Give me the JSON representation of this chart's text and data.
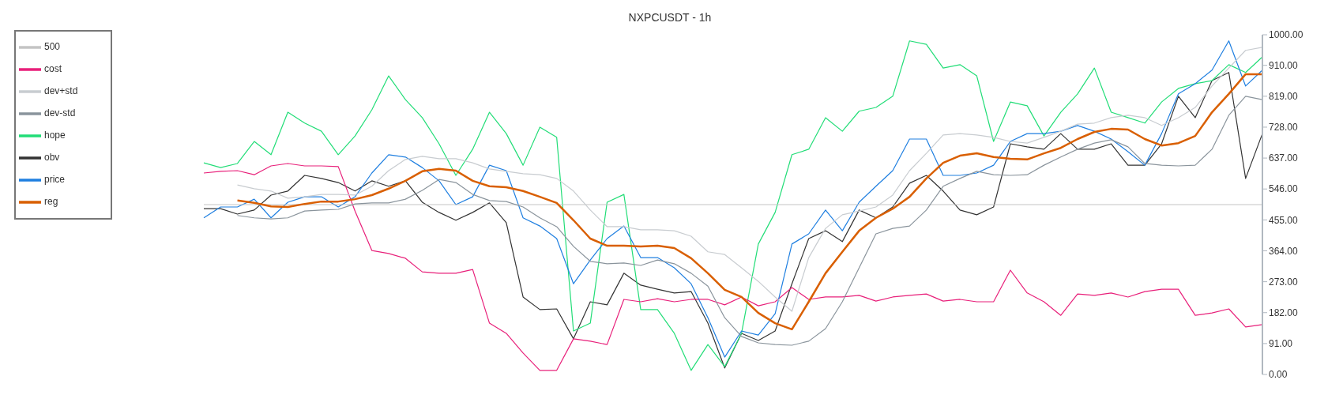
{
  "chart_data": {
    "type": "line",
    "title": "NXPCUSDT - 1h",
    "categories": [
      null,
      null,
      null,
      null,
      null,
      null,
      null,
      null,
      null,
      null,
      null,
      null,
      null,
      null,
      null,
      null,
      null,
      null,
      null,
      null,
      null,
      null,
      null,
      null,
      null,
      null,
      null,
      null,
      null,
      null,
      null,
      null,
      null,
      null,
      null,
      null,
      null,
      null,
      null,
      null,
      null,
      null,
      null,
      null,
      null,
      null,
      null,
      null,
      null,
      null,
      null,
      null,
      null,
      null,
      null,
      null,
      null,
      null,
      null,
      null,
      null,
      null,
      null,
      null
    ],
    "series": [
      {
        "name": "obv",
        "color": "#333333",
        "values": [
          488,
          488,
          472,
          484,
          528,
          540,
          586,
          577,
          565,
          540,
          570,
          554,
          570,
          507,
          477,
          454,
          477,
          505,
          447,
          228,
          191,
          193,
          105,
          214,
          205,
          298,
          263,
          251,
          240,
          244,
          151,
          19,
          121,
          100,
          128,
          267,
          400,
          423,
          391,
          484,
          461,
          493,
          563,
          586,
          540,
          484,
          470,
          493,
          679,
          670,
          663,
          709,
          663,
          663,
          679,
          616,
          616,
          679,
          819,
          756,
          865,
          889,
          577,
          709
        ]
      },
      {
        "name": "hope",
        "color": "#22dd77",
        "values": [
          623,
          609,
          621,
          686,
          647,
          772,
          740,
          716,
          647,
          702,
          779,
          879,
          809,
          756,
          679,
          586,
          663,
          772,
          709,
          616,
          728,
          698,
          128,
          151,
          507,
          530,
          191,
          191,
          121,
          12,
          88,
          23,
          121,
          384,
          477,
          647,
          663,
          756,
          716,
          775,
          786,
          819,
          982,
          972,
          902,
          912,
          879,
          686,
          802,
          791,
          702,
          772,
          826,
          902,
          772,
          756,
          740,
          802,
          842,
          856,
          865,
          912,
          889,
          935
        ]
      },
      {
        "name": "cost",
        "color": "#e8207a",
        "values": [
          593,
          598,
          600,
          588,
          614,
          621,
          614,
          614,
          612,
          481,
          365,
          356,
          342,
          302,
          298,
          298,
          309,
          151,
          121,
          63,
          12,
          12,
          105,
          98,
          88,
          221,
          214,
          223,
          214,
          221,
          221,
          205,
          228,
          202,
          214,
          256,
          221,
          228,
          228,
          233,
          216,
          228,
          233,
          237,
          216,
          221,
          214,
          214,
          307,
          240,
          214,
          174,
          237,
          233,
          240,
          228,
          244,
          251,
          251,
          174,
          181,
          193,
          140,
          147
        ]
      },
      {
        "name": "price",
        "color": "#1f7fe0",
        "values": [
          461,
          493,
          493,
          516,
          461,
          507,
          523,
          523,
          493,
          523,
          593,
          647,
          640,
          609,
          570,
          500,
          523,
          616,
          600,
          461,
          437,
          400,
          267,
          337,
          400,
          437,
          344,
          344,
          314,
          267,
          167,
          51,
          128,
          116,
          179,
          384,
          414,
          484,
          423,
          507,
          554,
          600,
          693,
          693,
          586,
          586,
          593,
          616,
          686,
          709,
          709,
          716,
          733,
          716,
          693,
          656,
          616,
          709,
          826,
          856,
          896,
          982,
          849,
          896
        ]
      },
      {
        "name": "500",
        "color": "#c4c4c4",
        "values": [
          500,
          500,
          500,
          500,
          500,
          500,
          500,
          500,
          500,
          500,
          500,
          500,
          500,
          500,
          500,
          500,
          500,
          500,
          500,
          500,
          500,
          500,
          500,
          500,
          500,
          500,
          500,
          500,
          500,
          500,
          500,
          500,
          500,
          500,
          500,
          500,
          500,
          500,
          500,
          500,
          500,
          500,
          500,
          500,
          500,
          500,
          500,
          500,
          500,
          500,
          500,
          500,
          500,
          500,
          500,
          500,
          500,
          500,
          500,
          500,
          500,
          500,
          500,
          500
        ]
      },
      {
        "name": "reg",
        "color": "#d95f02",
        "values": [
          null,
          null,
          512,
          505,
          495,
          493,
          502,
          509,
          509,
          516,
          528,
          547,
          570,
          598,
          605,
          600,
          570,
          554,
          551,
          540,
          523,
          505,
          454,
          400,
          379,
          379,
          377,
          379,
          372,
          342,
          298,
          249,
          228,
          181,
          151,
          133,
          214,
          298,
          361,
          423,
          461,
          488,
          523,
          577,
          623,
          644,
          651,
          640,
          635,
          633,
          651,
          667,
          693,
          714,
          723,
          721,
          693,
          674,
          681,
          702,
          772,
          826,
          884,
          884
        ]
      },
      {
        "name": "dev+std",
        "color": "#c8ccd0",
        "values": [
          null,
          null,
          558,
          547,
          540,
          519,
          523,
          530,
          530,
          528,
          554,
          600,
          633,
          642,
          635,
          635,
          623,
          605,
          598,
          591,
          588,
          577,
          540,
          484,
          435,
          435,
          426,
          426,
          423,
          407,
          361,
          353,
          314,
          274,
          228,
          186,
          344,
          430,
          470,
          481,
          493,
          528,
          600,
          651,
          705,
          709,
          705,
          698,
          686,
          681,
          698,
          716,
          737,
          740,
          756,
          763,
          756,
          733,
          756,
          786,
          849,
          902,
          954,
          963
        ]
      },
      {
        "name": "dev-std",
        "color": "#8a949c",
        "values": [
          null,
          null,
          468,
          461,
          458,
          461,
          481,
          484,
          486,
          502,
          505,
          505,
          516,
          542,
          574,
          565,
          530,
          512,
          509,
          493,
          461,
          435,
          377,
          333,
          326,
          328,
          321,
          337,
          326,
          298,
          260,
          167,
          112,
          93,
          88,
          86,
          98,
          135,
          214,
          314,
          414,
          430,
          437,
          484,
          554,
          577,
          598,
          588,
          586,
          588,
          616,
          640,
          663,
          681,
          691,
          670,
          621,
          616,
          614,
          616,
          663,
          763,
          819,
          809
        ]
      }
    ],
    "ylim": [
      0,
      1000
    ],
    "yticks": [
      {
        "value": 0,
        "label": "0.00"
      },
      {
        "value": 91,
        "label": "91.00"
      },
      {
        "value": 182,
        "label": "182.00"
      },
      {
        "value": 273,
        "label": "273.00"
      },
      {
        "value": 364,
        "label": "364.00"
      },
      {
        "value": 455,
        "label": "455.00"
      },
      {
        "value": 546,
        "label": "546.00"
      },
      {
        "value": 637,
        "label": "637.00"
      },
      {
        "value": 728,
        "label": "728.00"
      },
      {
        "value": 819,
        "label": "819.00"
      },
      {
        "value": 910,
        "label": "910.00"
      },
      {
        "value": 1000,
        "label": "1000.00"
      }
    ],
    "tick_labels": "y",
    "grid": false,
    "legend": "top left",
    "marker": "none",
    "line_style": "solid"
  }
}
